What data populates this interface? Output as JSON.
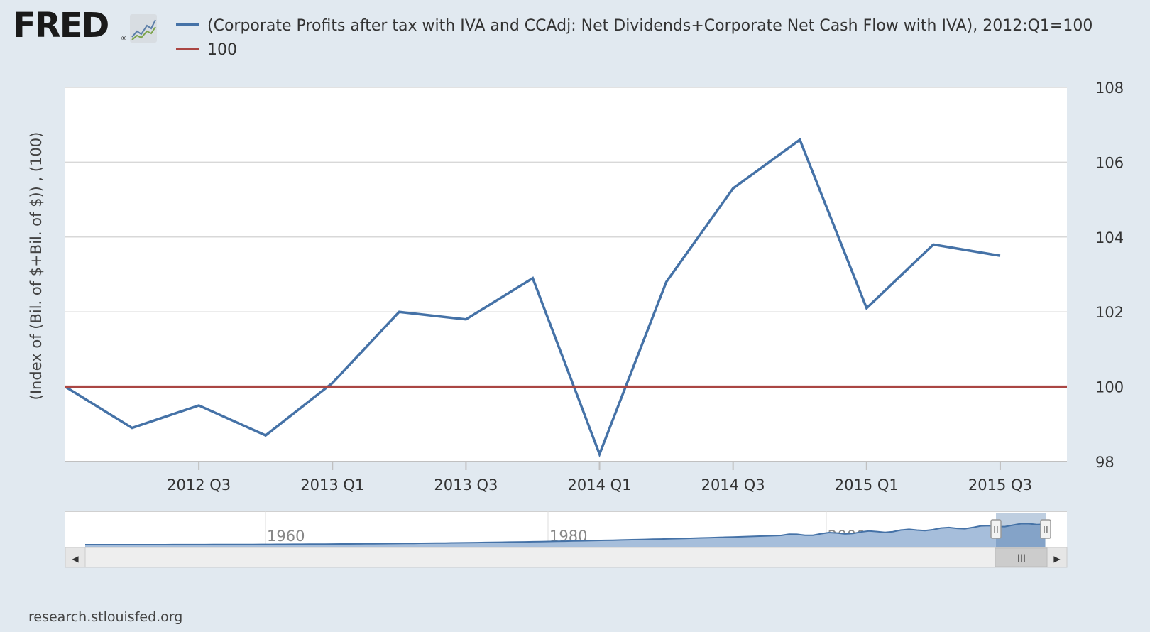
{
  "header": {
    "logo_text": "FRED",
    "logo_reg": "®",
    "logo_icon": "fred-line-chart-icon"
  },
  "legend": [
    {
      "label": "(Corporate Profits after tax with IVA and CCAdj: Net Dividends+Corporate Net Cash Flow with IVA), 2012:Q1=100",
      "color": "#4572a7"
    },
    {
      "label": "100",
      "color": "#aa4643"
    }
  ],
  "chart_data": {
    "type": "line",
    "title": "",
    "xlabel": "",
    "ylabel": "(Index of (Bil. of $+Bil. of $)) , (100)",
    "y_axis_side": "right",
    "ylim": [
      98,
      108
    ],
    "y_ticks": [
      "98",
      "100",
      "102",
      "104",
      "106",
      "108"
    ],
    "x_ticks": [
      "2012 Q3",
      "2013 Q1",
      "2013 Q3",
      "2014 Q1",
      "2014 Q3",
      "2015 Q1",
      "2015 Q3"
    ],
    "x": [
      "2012 Q1",
      "2012 Q2",
      "2012 Q3",
      "2012 Q4",
      "2013 Q1",
      "2013 Q2",
      "2013 Q3",
      "2013 Q4",
      "2014 Q1",
      "2014 Q2",
      "2014 Q3",
      "2014 Q4",
      "2015 Q1",
      "2015 Q2",
      "2015 Q3"
    ],
    "series": [
      {
        "name": "(Corporate Profits after tax with IVA and CCAdj: Net Dividends+Corporate Net Cash Flow with IVA), 2012:Q1=100",
        "color": "#4572a7",
        "values": [
          100.0,
          98.9,
          99.5,
          98.7,
          100.1,
          102.0,
          101.8,
          102.9,
          98.2,
          102.8,
          105.3,
          106.6,
          102.1,
          103.8,
          103.5
        ]
      },
      {
        "name": "100",
        "color": "#aa4643",
        "values": [
          100,
          100,
          100,
          100,
          100,
          100,
          100,
          100,
          100,
          100,
          100,
          100,
          100,
          100,
          100
        ]
      }
    ],
    "grid": true,
    "legend_position": "top"
  },
  "navigator": {
    "labels": [
      "1960",
      "1980",
      "2000"
    ],
    "left_arrow": "◀",
    "right_arrow": "▶",
    "scrollbar_grip": "III",
    "handle_grip": "II"
  },
  "source": "research.stlouisfed.org"
}
